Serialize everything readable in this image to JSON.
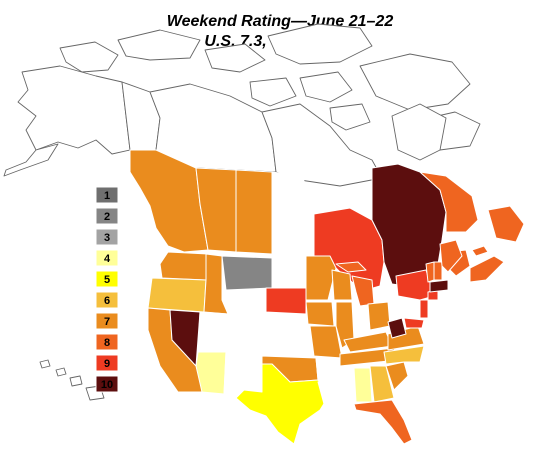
{
  "title": {
    "line1": "Weekend Rating—June 21–22",
    "line2": "U.S. 7.3, Canada 7.9"
  },
  "legend": [
    {
      "label": "1",
      "color": "#6f6f6f"
    },
    {
      "label": "2",
      "color": "#858585"
    },
    {
      "label": "3",
      "color": "#a3a3a3"
    },
    {
      "label": "4",
      "color": "#ffff99"
    },
    {
      "label": "5",
      "color": "#ffff00"
    },
    {
      "label": "6",
      "color": "#f5bf3c"
    },
    {
      "label": "7",
      "color": "#ea8c1e"
    },
    {
      "label": "8",
      "color": "#ef6520"
    },
    {
      "label": "9",
      "color": "#ee3b22"
    },
    {
      "label": "10",
      "color": "#5c0e0e"
    }
  ]
}
